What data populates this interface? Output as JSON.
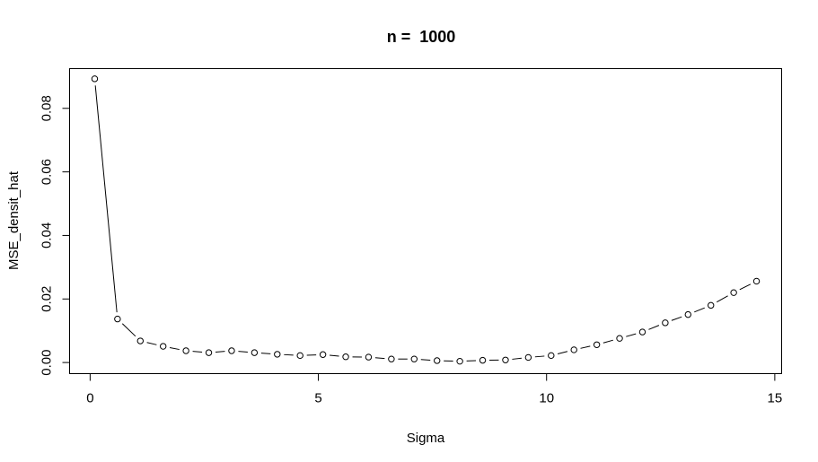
{
  "chart_data": {
    "type": "line",
    "title": "n =  1000",
    "xlabel": "Sigma",
    "ylabel": "MSE_densit_hat",
    "xlim": [
      -0.45,
      15.15
    ],
    "ylim": [
      -0.0035,
      0.0925
    ],
    "x_ticks": [
      0,
      5,
      10,
      15
    ],
    "y_ticks": [
      0.0,
      0.02,
      0.04,
      0.06,
      0.08
    ],
    "x_tick_labels": [
      "0",
      "5",
      "10",
      "15"
    ],
    "y_tick_labels": [
      "0.00",
      "0.02",
      "0.04",
      "0.06",
      "0.08"
    ],
    "grid": false,
    "legend": null,
    "marker": "open-circle",
    "series": [
      {
        "x": [
          0.1,
          0.6,
          1.1,
          1.6,
          2.1,
          2.6,
          3.1,
          3.6,
          4.1,
          4.6,
          5.1,
          5.6,
          6.1,
          6.6,
          7.1,
          7.6,
          8.1,
          8.6,
          9.1,
          9.6,
          10.1,
          10.6,
          11.1,
          11.6,
          12.1,
          12.6,
          13.1,
          13.6,
          14.1,
          14.6
        ],
        "values": [
          0.0893,
          0.0137,
          0.0068,
          0.0051,
          0.0037,
          0.0031,
          0.0037,
          0.0031,
          0.0026,
          0.0022,
          0.0025,
          0.0018,
          0.0017,
          0.0011,
          0.0011,
          0.0006,
          0.0004,
          0.0007,
          0.0008,
          0.0016,
          0.0022,
          0.004,
          0.0056,
          0.0076,
          0.0096,
          0.0125,
          0.0151,
          0.018,
          0.022,
          0.0256
        ]
      }
    ]
  }
}
